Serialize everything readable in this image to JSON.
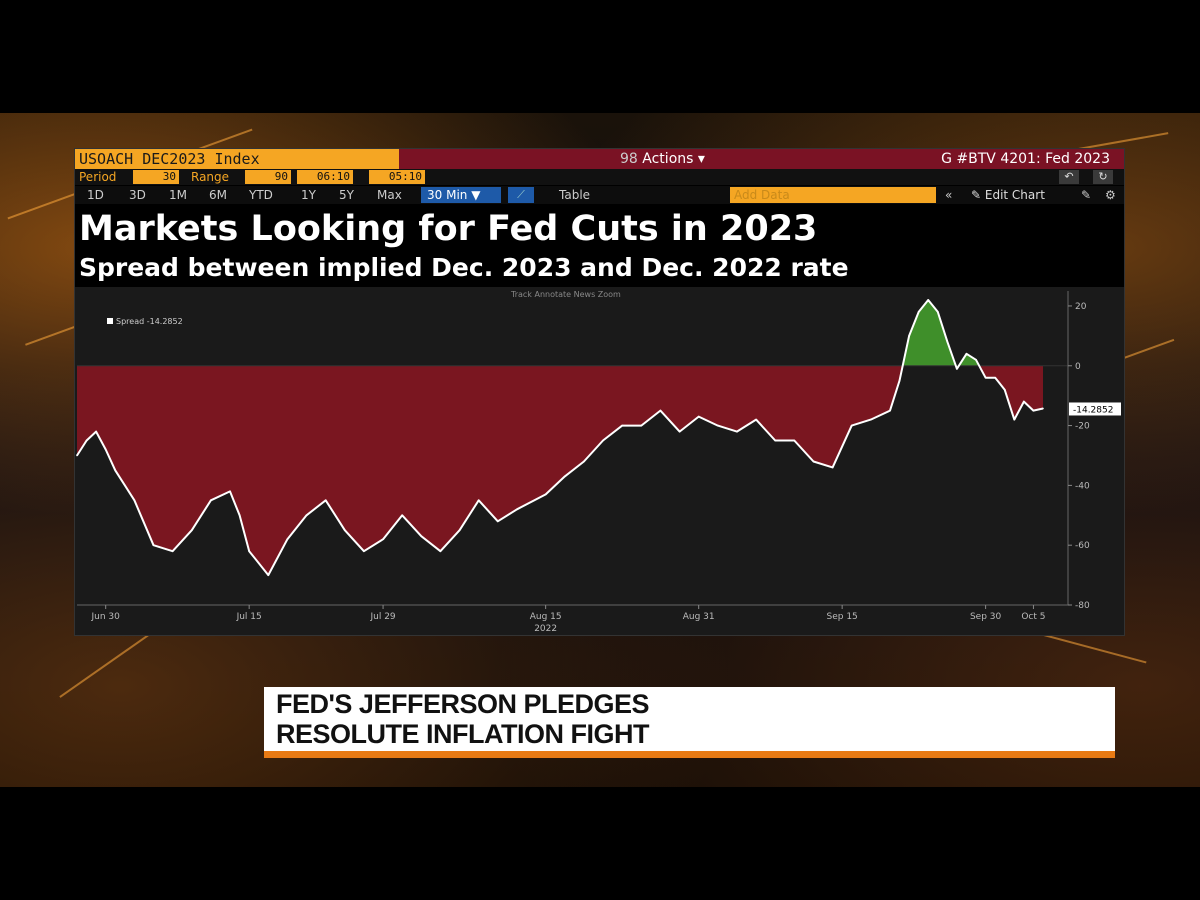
{
  "terminal": {
    "ticker": "USOACH DEC2023 Index",
    "actions_num": "98",
    "actions_label": "Actions",
    "actions_caret": "▾",
    "screen": "G #BTV 4201: Fed 2023",
    "period_label": "Period",
    "period_value": "30",
    "range_label": "Range",
    "range_value": "90",
    "time_from": "06:10",
    "time_to": "05:10",
    "ranges": [
      "1D",
      "3D",
      "1M",
      "6M",
      "YTD",
      "1Y",
      "5Y",
      "Max"
    ],
    "interval": "30 Min ▼",
    "table_label": "Table",
    "add_data_placeholder": "Add Data",
    "edit_chart": "Edit Chart",
    "modes": "Track   Annotate   News   Zoom"
  },
  "chart_data": {
    "type": "area",
    "title": "Markets Looking for Fed Cuts in 2023",
    "subtitle": "Spread between implied Dec. 2023 and Dec. 2022 rate",
    "legend": "Spread -14.2852",
    "last_value_label": "-14.2852",
    "ylim": [
      -80,
      25
    ],
    "yticks": [
      20,
      0,
      -20,
      -40,
      -60,
      -80
    ],
    "xticks": [
      "Jun 30",
      "Jul 15",
      "Jul 29",
      "Aug 15",
      "Aug 31",
      "Sep 15",
      "Sep 30",
      "Oct 5"
    ],
    "x_year_label": "2022",
    "colors": {
      "line": "#ffffff",
      "negative_fill": "#7a1620",
      "positive_fill": "#3f8f2a",
      "background": "#1a1a1a"
    },
    "series": [
      {
        "x": [
          "2022-06-27",
          "2022-06-28",
          "2022-06-29",
          "2022-06-30",
          "2022-07-01",
          "2022-07-03",
          "2022-07-05",
          "2022-07-07",
          "2022-07-09",
          "2022-07-11",
          "2022-07-13",
          "2022-07-14",
          "2022-07-15",
          "2022-07-17",
          "2022-07-19",
          "2022-07-21",
          "2022-07-23",
          "2022-07-25",
          "2022-07-27",
          "2022-07-29",
          "2022-07-31",
          "2022-08-02",
          "2022-08-04",
          "2022-08-06",
          "2022-08-08",
          "2022-08-10",
          "2022-08-12",
          "2022-08-15",
          "2022-08-17",
          "2022-08-19",
          "2022-08-21",
          "2022-08-23",
          "2022-08-25",
          "2022-08-27",
          "2022-08-29",
          "2022-08-31",
          "2022-09-02",
          "2022-09-04",
          "2022-09-06",
          "2022-09-08",
          "2022-09-10",
          "2022-09-12",
          "2022-09-14",
          "2022-09-16",
          "2022-09-18",
          "2022-09-20",
          "2022-09-21",
          "2022-09-22",
          "2022-09-23",
          "2022-09-24",
          "2022-09-25",
          "2022-09-26",
          "2022-09-27",
          "2022-09-28",
          "2022-09-29",
          "2022-09-30",
          "2022-10-01",
          "2022-10-02",
          "2022-10-03",
          "2022-10-04",
          "2022-10-05",
          "2022-10-06"
        ],
        "values": [
          -30,
          -25,
          -22,
          -28,
          -35,
          -45,
          -60,
          -62,
          -55,
          -45,
          -42,
          -50,
          -62,
          -70,
          -58,
          -50,
          -45,
          -55,
          -62,
          -58,
          -50,
          -57,
          -62,
          -55,
          -45,
          -52,
          -48,
          -43,
          -37,
          -32,
          -25,
          -20,
          -20,
          -15,
          -22,
          -17,
          -20,
          -22,
          -18,
          -25,
          -25,
          -32,
          -34,
          -20,
          -18,
          -15,
          -5,
          10,
          18,
          22,
          18,
          8,
          -1,
          4,
          2,
          -4,
          -4,
          -8,
          -18,
          -12,
          -15,
          -14.2852
        ]
      }
    ]
  },
  "lower_third": {
    "line1": "FED'S JEFFERSON PLEDGES",
    "line2": "RESOLUTE INFLATION FIGHT"
  }
}
